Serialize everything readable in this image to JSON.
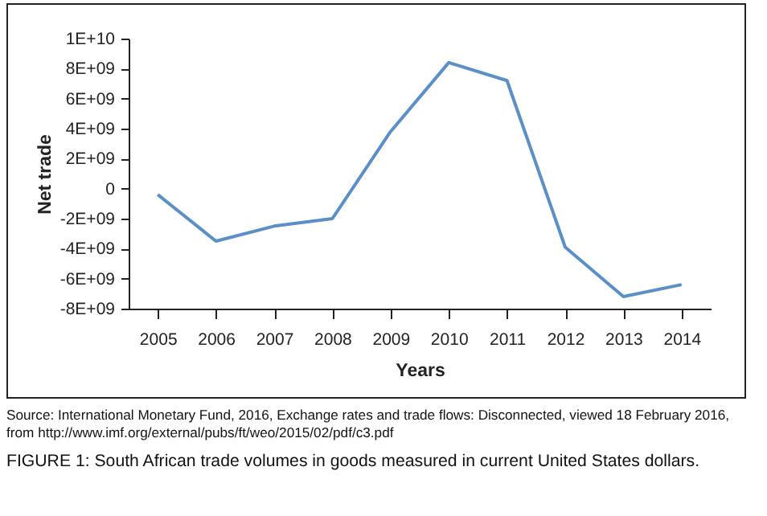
{
  "chart_data": {
    "type": "line",
    "xlabel": "Years",
    "ylabel": "Net trade",
    "categories": [
      "2005",
      "2006",
      "2007",
      "2008",
      "2009",
      "2010",
      "2011",
      "2012",
      "2013",
      "2014"
    ],
    "series": [
      {
        "color": "#5b8fc7",
        "values": [
          -400000000.0,
          -3500000000.0,
          -2500000000.0,
          -2000000000.0,
          3800000000.0,
          8400000000.0,
          7200000000.0,
          -3900000000.0,
          -7200000000.0,
          -6400000000.0
        ]
      }
    ],
    "ylim": [
      -8000000000.0,
      10000000000.0
    ],
    "yticks": [
      {
        "value": -8000000000.0,
        "label": "-8E+09"
      },
      {
        "value": -6000000000.0,
        "label": "-6E+09"
      },
      {
        "value": -4000000000.0,
        "label": "-4E+09"
      },
      {
        "value": -2000000000.0,
        "label": "-2E+09"
      },
      {
        "value": 0,
        "label": "0"
      },
      {
        "value": 2000000000.0,
        "label": "2E+09"
      },
      {
        "value": 4000000000.0,
        "label": "4E+09"
      },
      {
        "value": 6000000000.0,
        "label": "6E+09"
      },
      {
        "value": 8000000000.0,
        "label": "8E+09"
      },
      {
        "value": 10000000000.0,
        "label": "1E+10"
      }
    ],
    "grid": false,
    "marker": "none",
    "line_style": "solid",
    "annotations": [
      "Source: International Monetary Fund, 2016, Exchange rates and trade flows: Disconnected, viewed 18 February 2016, from http://www.imf.org/external/pubs/ft/weo/2015/02/pdf/c3.pdf",
      "FIGURE 1: South African trade volumes in goods measured in current United States dollars."
    ]
  }
}
